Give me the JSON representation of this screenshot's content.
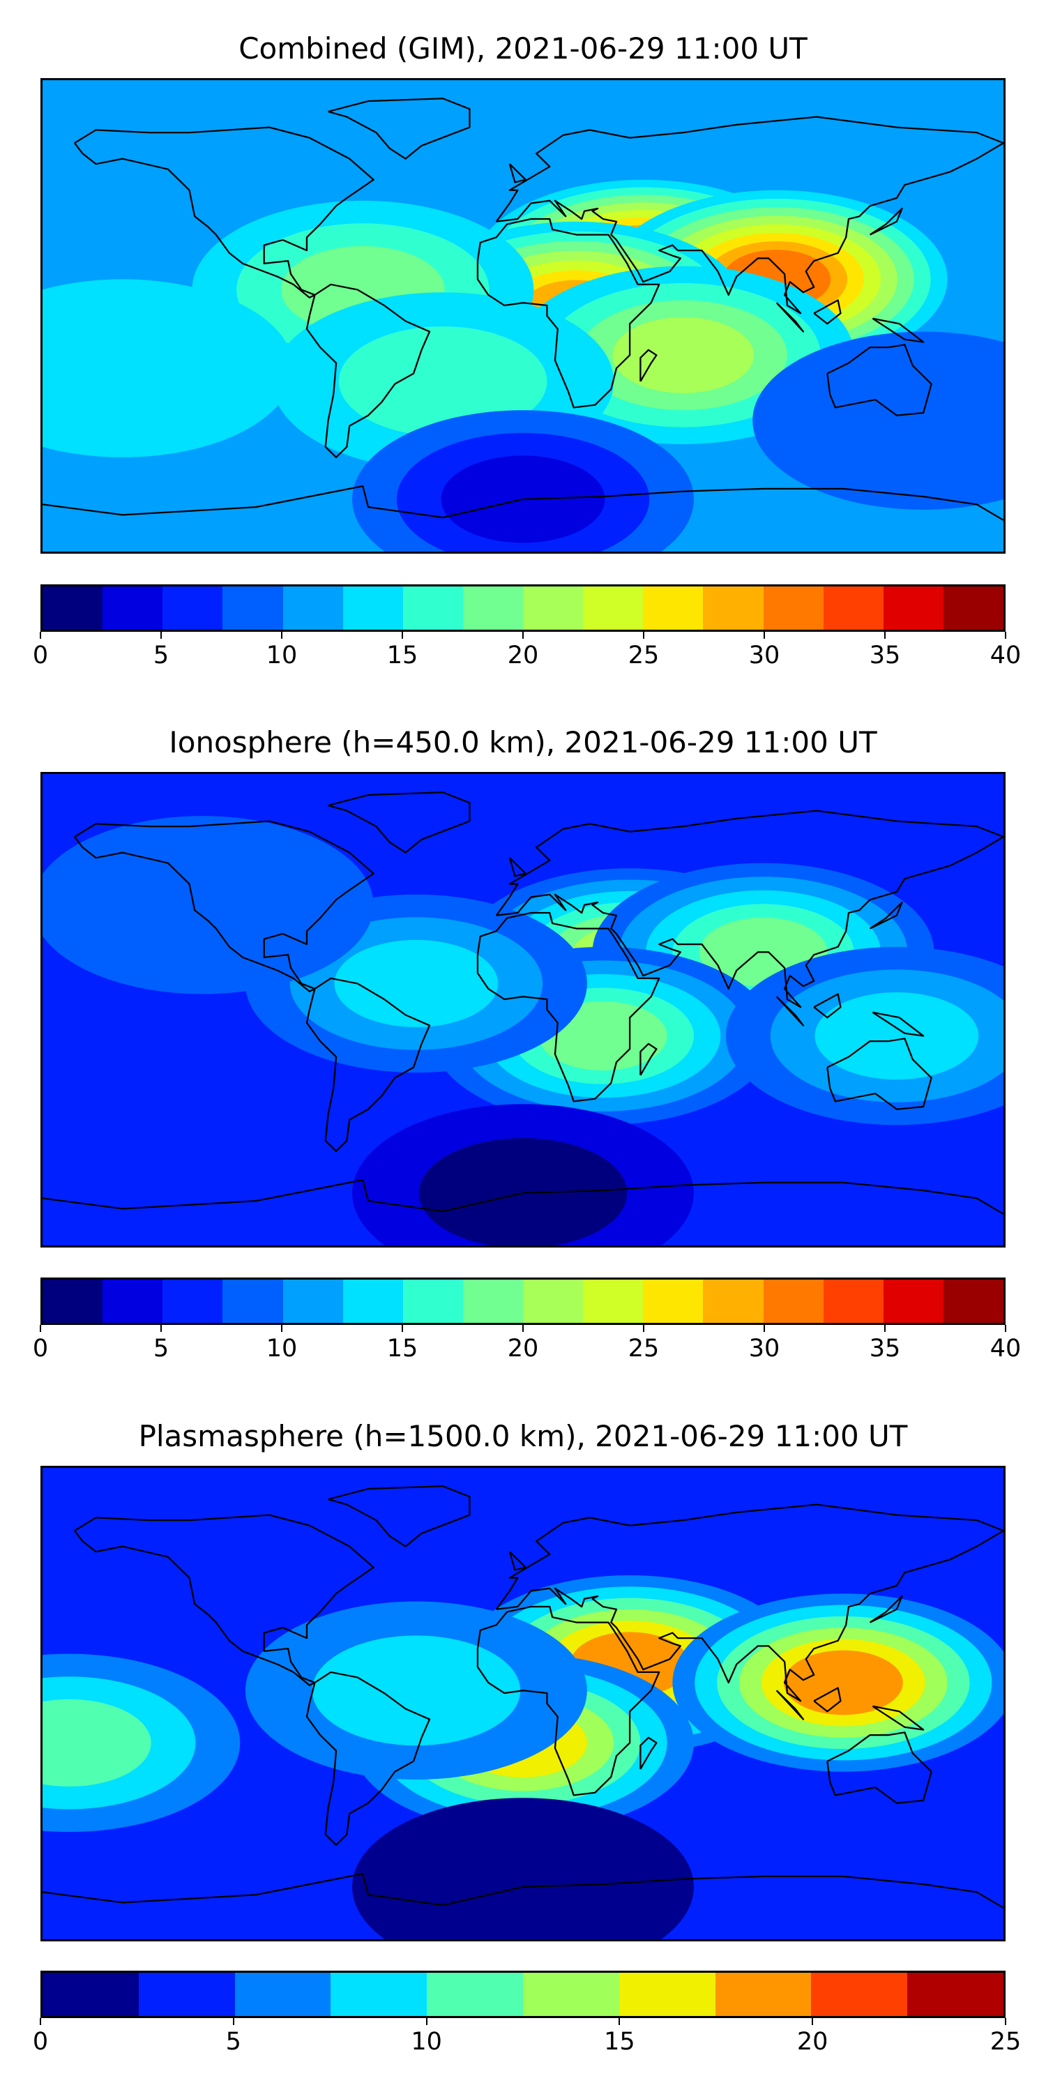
{
  "chart_data": [
    {
      "type": "heatmap",
      "title": "Combined (GIM), 2021-06-29 11:00 UT",
      "colorbar": {
        "min": 0,
        "max": 40,
        "levels": [
          0,
          2.5,
          5,
          7.5,
          10,
          12.5,
          15,
          17.5,
          20,
          22.5,
          25,
          27.5,
          30,
          32.5,
          35,
          37.5,
          40
        ],
        "ticks": [
          0,
          5,
          10,
          15,
          20,
          25,
          30,
          35,
          40
        ],
        "colors": [
          "#00007f",
          "#0000e0",
          "#0020ff",
          "#0060ff",
          "#00a0ff",
          "#00e0ff",
          "#30ffd0",
          "#70ff90",
          "#a8ff58",
          "#d0ff28",
          "#ffe600",
          "#ffb000",
          "#ff7800",
          "#ff4000",
          "#e00000",
          "#9a0000"
        ]
      },
      "background_level": 4,
      "blobs": [
        {
          "lon": 45,
          "lat": 18,
          "level": 13
        },
        {
          "lon": 95,
          "lat": 14,
          "level": 12
        },
        {
          "lon": 20,
          "lat": 2,
          "level": 11
        },
        {
          "lon": 60,
          "lat": -15,
          "level": 8
        },
        {
          "lon": -60,
          "lat": 10,
          "level": 7
        },
        {
          "lon": -30,
          "lat": -25,
          "level": 6
        },
        {
          "lon": 150,
          "lat": -40,
          "level": 3
        },
        {
          "lon": -150,
          "lat": -20,
          "level": 5
        },
        {
          "lon": 0,
          "lat": -70,
          "level": 1
        }
      ]
    },
    {
      "type": "heatmap",
      "title": "Ionosphere  (h=450.0 km), 2021-06-29 11:00 UT",
      "colorbar": {
        "min": 0,
        "max": 40,
        "levels": [
          0,
          2.5,
          5,
          7.5,
          10,
          12.5,
          15,
          17.5,
          20,
          22.5,
          25,
          27.5,
          30,
          32.5,
          35,
          37.5,
          40
        ],
        "ticks": [
          0,
          5,
          10,
          15,
          20,
          25,
          30,
          35,
          40
        ],
        "colors": [
          "#00007f",
          "#0000e0",
          "#0020ff",
          "#0060ff",
          "#00a0ff",
          "#00e0ff",
          "#30ffd0",
          "#70ff90",
          "#a8ff58",
          "#d0ff28",
          "#ffe600",
          "#ffb000",
          "#ff7800",
          "#ff4000",
          "#e00000",
          "#9a0000"
        ]
      },
      "background_level": 2,
      "blobs": [
        {
          "lon": 40,
          "lat": 20,
          "level": 8
        },
        {
          "lon": 90,
          "lat": 22,
          "level": 7
        },
        {
          "lon": 30,
          "lat": -10,
          "level": 7
        },
        {
          "lon": -40,
          "lat": 10,
          "level": 5
        },
        {
          "lon": 140,
          "lat": -10,
          "level": 5
        },
        {
          "lon": -120,
          "lat": 40,
          "level": 3
        },
        {
          "lon": 0,
          "lat": -70,
          "level": 0
        }
      ]
    },
    {
      "type": "heatmap",
      "title": "Plasmasphere (h=1500.0 km), 2021-06-29 11:00 UT",
      "colorbar": {
        "min": 0,
        "max": 25,
        "levels": [
          0,
          2.5,
          5,
          7.5,
          10,
          12.5,
          15,
          17.5,
          20,
          22.5,
          25
        ],
        "ticks": [
          0,
          5,
          10,
          15,
          20,
          25
        ],
        "colors": [
          "#00008f",
          "#0020ff",
          "#0080ff",
          "#00e0ff",
          "#50ffb0",
          "#a0ff58",
          "#f0f000",
          "#ff9600",
          "#ff4000",
          "#b00000"
        ]
      },
      "background_level": 1,
      "blobs": [
        {
          "lon": 40,
          "lat": 15,
          "level": 7
        },
        {
          "lon": 120,
          "lat": 8,
          "level": 7
        },
        {
          "lon": 0,
          "lat": -15,
          "level": 6
        },
        {
          "lon": -170,
          "lat": -15,
          "level": 4
        },
        {
          "lon": -40,
          "lat": 5,
          "level": 3
        },
        {
          "lon": 0,
          "lat": -70,
          "level": 0
        }
      ]
    }
  ]
}
